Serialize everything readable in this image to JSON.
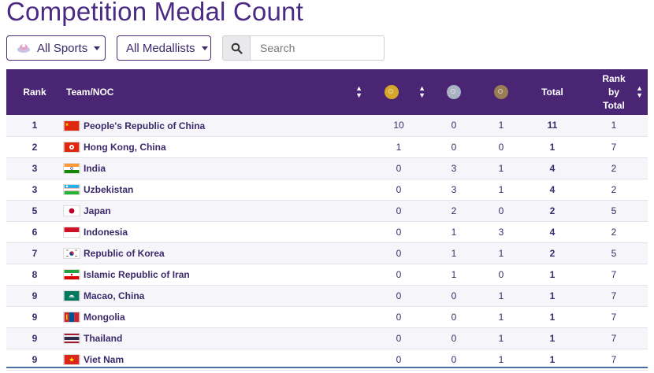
{
  "page": {
    "title": "Competition Medal Count"
  },
  "filters": {
    "sports_label": "All Sports",
    "sports_icon": "sports-icon",
    "medallists_label": "All Medallists",
    "search_placeholder": "Search",
    "search_value": "",
    "search_icon": "search-icon"
  },
  "table": {
    "headers": {
      "rank": "Rank",
      "team": "Team/NOC",
      "total": "Total",
      "rank_by_total": [
        "Rank",
        "by",
        "Total"
      ]
    },
    "medal_icons": [
      "gold-medal-icon",
      "silver-medal-icon",
      "bronze-medal-icon"
    ],
    "rows": [
      {
        "rank": "1",
        "team": "People's Republic of China",
        "flag": "flag-china",
        "gold": "10",
        "silver": "0",
        "bronze": "1",
        "total": "11",
        "rank_by_total": "1"
      },
      {
        "rank": "2",
        "team": "Hong Kong, China",
        "flag": "flag-hong-kong",
        "gold": "1",
        "silver": "0",
        "bronze": "0",
        "total": "1",
        "rank_by_total": "7"
      },
      {
        "rank": "3",
        "team": "India",
        "flag": "flag-india",
        "gold": "0",
        "silver": "3",
        "bronze": "1",
        "total": "4",
        "rank_by_total": "2"
      },
      {
        "rank": "3",
        "team": "Uzbekistan",
        "flag": "flag-uzbekistan",
        "gold": "0",
        "silver": "3",
        "bronze": "1",
        "total": "4",
        "rank_by_total": "2"
      },
      {
        "rank": "5",
        "team": "Japan",
        "flag": "flag-japan",
        "gold": "0",
        "silver": "2",
        "bronze": "0",
        "total": "2",
        "rank_by_total": "5"
      },
      {
        "rank": "6",
        "team": "Indonesia",
        "flag": "flag-indonesia",
        "gold": "0",
        "silver": "1",
        "bronze": "3",
        "total": "4",
        "rank_by_total": "2"
      },
      {
        "rank": "7",
        "team": "Republic of Korea",
        "flag": "flag-korea",
        "gold": "0",
        "silver": "1",
        "bronze": "1",
        "total": "2",
        "rank_by_total": "5"
      },
      {
        "rank": "8",
        "team": "Islamic Republic of Iran",
        "flag": "flag-iran",
        "gold": "0",
        "silver": "1",
        "bronze": "0",
        "total": "1",
        "rank_by_total": "7"
      },
      {
        "rank": "9",
        "team": "Macao, China",
        "flag": "flag-macao",
        "gold": "0",
        "silver": "0",
        "bronze": "1",
        "total": "1",
        "rank_by_total": "7"
      },
      {
        "rank": "9",
        "team": "Mongolia",
        "flag": "flag-mongolia",
        "gold": "0",
        "silver": "0",
        "bronze": "1",
        "total": "1",
        "rank_by_total": "7"
      },
      {
        "rank": "9",
        "team": "Thailand",
        "flag": "flag-thailand",
        "gold": "0",
        "silver": "0",
        "bronze": "1",
        "total": "1",
        "rank_by_total": "7"
      },
      {
        "rank": "9",
        "team": "Viet Nam",
        "flag": "flag-vietnam",
        "gold": "0",
        "silver": "0",
        "bronze": "1",
        "total": "1",
        "rank_by_total": "7"
      }
    ]
  },
  "colors": {
    "header_bg": "#4a2574",
    "title": "#4a2a82",
    "text": "#3a2a6b",
    "gold": "#d4a629",
    "silver": "#a9b3c4",
    "bronze": "#9a7d55"
  }
}
